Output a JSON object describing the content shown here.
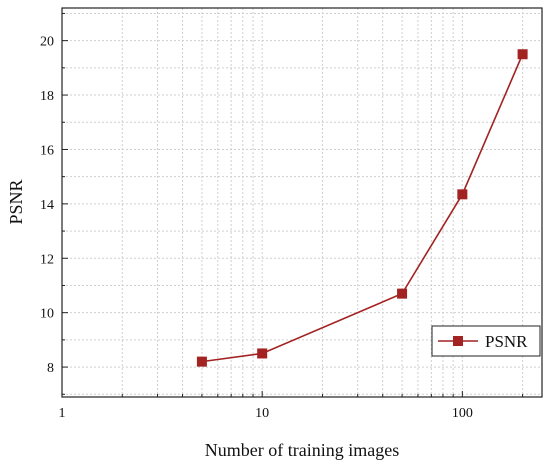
{
  "chart_data": {
    "type": "line",
    "xlabel": "Number of training images",
    "ylabel": "PSNR",
    "x_scale": "log",
    "xlim": [
      1,
      250
    ],
    "ylim": [
      6.9,
      21.2
    ],
    "x_ticks": [
      1,
      10,
      100
    ],
    "x_tick_labels": [
      "1",
      "10",
      "100"
    ],
    "y_ticks": [
      8,
      10,
      12,
      14,
      16,
      18,
      20
    ],
    "y_tick_labels": [
      "8",
      "10",
      "12",
      "14",
      "16",
      "18",
      "20"
    ],
    "grid": true,
    "legend_position": "bottom-right",
    "series": [
      {
        "name": "PSNR",
        "color": "#a32222",
        "marker": "square",
        "x": [
          5,
          10,
          50,
          100,
          200
        ],
        "y": [
          8.2,
          8.5,
          10.7,
          14.35,
          19.5
        ]
      }
    ]
  }
}
